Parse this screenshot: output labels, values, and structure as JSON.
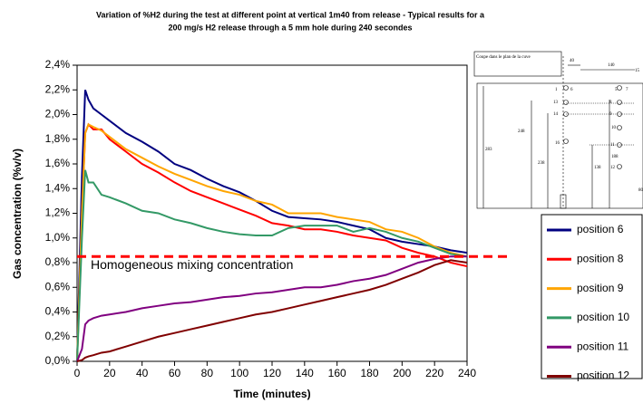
{
  "chart_data": {
    "type": "line",
    "title": "Variation of %H2 during the test at different point at vertical 1m40 from release - Typical results for a",
    "subtitle": "200 mg/s H2 release through a 5 mm hole during 240 secondes",
    "x_label": "Time (minutes)",
    "y_label": "Gas concentration (%v/v)",
    "x": [
      0,
      3,
      5,
      7,
      10,
      15,
      20,
      30,
      40,
      50,
      60,
      70,
      80,
      90,
      100,
      110,
      120,
      130,
      140,
      150,
      160,
      170,
      180,
      190,
      200,
      210,
      220,
      230,
      240
    ],
    "series": [
      {
        "name": "position 6",
        "color": "#000080",
        "values": [
          0,
          1.5,
          2.2,
          2.12,
          2.05,
          2.0,
          1.95,
          1.85,
          1.78,
          1.7,
          1.6,
          1.55,
          1.48,
          1.42,
          1.37,
          1.3,
          1.22,
          1.17,
          1.16,
          1.15,
          1.13,
          1.1,
          1.07,
          1.0,
          0.97,
          0.95,
          0.93,
          0.9,
          0.88
        ]
      },
      {
        "name": "position 8",
        "color": "#ff0000",
        "values": [
          0,
          1.2,
          1.85,
          1.92,
          1.88,
          1.88,
          1.8,
          1.7,
          1.6,
          1.53,
          1.45,
          1.38,
          1.33,
          1.28,
          1.23,
          1.18,
          1.12,
          1.1,
          1.07,
          1.07,
          1.05,
          1.02,
          1.0,
          0.98,
          0.92,
          0.88,
          0.85,
          0.8,
          0.77
        ]
      },
      {
        "name": "position 9",
        "color": "#ffa500",
        "values": [
          0,
          1.2,
          1.85,
          1.92,
          1.9,
          1.87,
          1.82,
          1.72,
          1.65,
          1.58,
          1.52,
          1.47,
          1.42,
          1.38,
          1.35,
          1.3,
          1.27,
          1.2,
          1.2,
          1.2,
          1.17,
          1.15,
          1.13,
          1.07,
          1.05,
          1.0,
          0.93,
          0.88,
          0.85
        ]
      },
      {
        "name": "position 10",
        "color": "#339966",
        "values": [
          0,
          1.0,
          1.55,
          1.45,
          1.45,
          1.35,
          1.33,
          1.28,
          1.22,
          1.2,
          1.15,
          1.12,
          1.08,
          1.05,
          1.03,
          1.02,
          1.02,
          1.08,
          1.1,
          1.1,
          1.1,
          1.05,
          1.08,
          1.05,
          1.0,
          0.97,
          0.92,
          0.87,
          0.85
        ]
      },
      {
        "name": "position 11",
        "color": "#800080",
        "values": [
          0,
          0.1,
          0.3,
          0.33,
          0.35,
          0.37,
          0.38,
          0.4,
          0.43,
          0.45,
          0.47,
          0.48,
          0.5,
          0.52,
          0.53,
          0.55,
          0.56,
          0.58,
          0.6,
          0.6,
          0.62,
          0.65,
          0.67,
          0.7,
          0.75,
          0.8,
          0.83,
          0.85,
          0.85
        ]
      },
      {
        "name": "position 12",
        "color": "#800000",
        "values": [
          0,
          0.01,
          0.03,
          0.04,
          0.05,
          0.07,
          0.08,
          0.12,
          0.16,
          0.2,
          0.23,
          0.26,
          0.29,
          0.32,
          0.35,
          0.38,
          0.4,
          0.43,
          0.46,
          0.49,
          0.52,
          0.55,
          0.58,
          0.62,
          0.67,
          0.72,
          0.78,
          0.82,
          0.8
        ]
      }
    ],
    "reference_line": {
      "value": 0.85,
      "label": "Homogeneous mixing concentration",
      "color": "#ff0000"
    },
    "xlim": [
      0,
      240
    ],
    "xticks": [
      0,
      20,
      40,
      60,
      80,
      100,
      120,
      140,
      160,
      180,
      200,
      220,
      240
    ],
    "ylim": [
      0,
      2.4
    ],
    "yticks": [
      {
        "value": 0,
        "label": "0,0%"
      },
      {
        "value": 0.2,
        "label": "0,2%"
      },
      {
        "value": 0.4,
        "label": "0,4%"
      },
      {
        "value": 0.6,
        "label": "0,6%"
      },
      {
        "value": 0.8,
        "label": "0,8%"
      },
      {
        "value": 1.0,
        "label": "1,0%"
      },
      {
        "value": 1.2,
        "label": "1,2%"
      },
      {
        "value": 1.4,
        "label": "1,4%"
      },
      {
        "value": 1.6,
        "label": "1,6%"
      },
      {
        "value": 1.8,
        "label": "1,8%"
      },
      {
        "value": 2.0,
        "label": "2,0%"
      },
      {
        "value": 2.2,
        "label": "2,2%"
      },
      {
        "value": 2.4,
        "label": "2,4%"
      }
    ],
    "legend": "right",
    "inset_labels": [
      "Coupe dans le plan de la cuve",
      "40",
      "140",
      "15",
      "1",
      "6",
      "5",
      "7",
      "13",
      "8",
      "14",
      "9",
      "10",
      "16",
      "11",
      "12",
      "283",
      "248",
      "238",
      "138",
      "188",
      "80"
    ]
  }
}
